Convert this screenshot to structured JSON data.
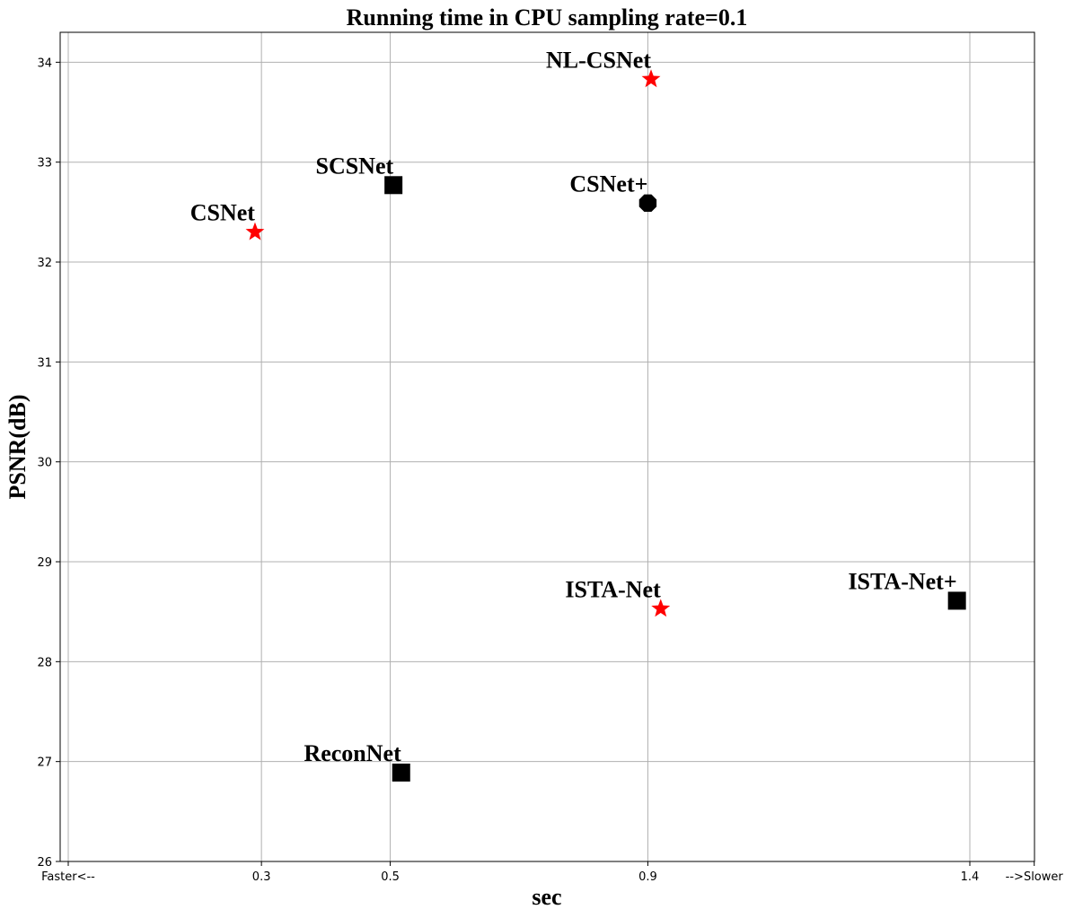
{
  "chart_data": {
    "type": "scatter",
    "title": "Running time in CPU    sampling rate=0.1",
    "xlabel": "sec",
    "ylabel": "PSNR(dB)",
    "xlim": [
      0.0,
      1.5
    ],
    "ylim": [
      26,
      34.3
    ],
    "grid": true,
    "x_ticks": [
      {
        "value": 0.0,
        "label": "Faster<--"
      },
      {
        "value": 0.3,
        "label": "0.3"
      },
      {
        "value": 0.5,
        "label": "0.5"
      },
      {
        "value": 0.9,
        "label": "0.9"
      },
      {
        "value": 1.4,
        "label": "1.4"
      },
      {
        "value": 1.5,
        "label": "-->Slower"
      }
    ],
    "y_ticks": [
      26,
      27,
      28,
      29,
      30,
      31,
      32,
      33,
      34
    ],
    "points": [
      {
        "name": "NL-CSNet",
        "x": 0.905,
        "y": 33.83,
        "marker": "star",
        "color": "#ff0000"
      },
      {
        "name": "SCSNet",
        "x": 0.505,
        "y": 32.77,
        "marker": "square",
        "color": "#000000"
      },
      {
        "name": "CSNet+",
        "x": 0.9,
        "y": 32.59,
        "marker": "octagon",
        "color": "#000000"
      },
      {
        "name": "CSNet",
        "x": 0.29,
        "y": 32.3,
        "marker": "star",
        "color": "#ff0000"
      },
      {
        "name": "ISTA-Net",
        "x": 0.92,
        "y": 28.53,
        "marker": "star",
        "color": "#ff0000"
      },
      {
        "name": "ISTA-Net+",
        "x": 1.38,
        "y": 28.61,
        "marker": "square",
        "color": "#000000"
      },
      {
        "name": "ReconNet",
        "x": 0.517,
        "y": 26.89,
        "marker": "square",
        "color": "#000000"
      }
    ]
  }
}
